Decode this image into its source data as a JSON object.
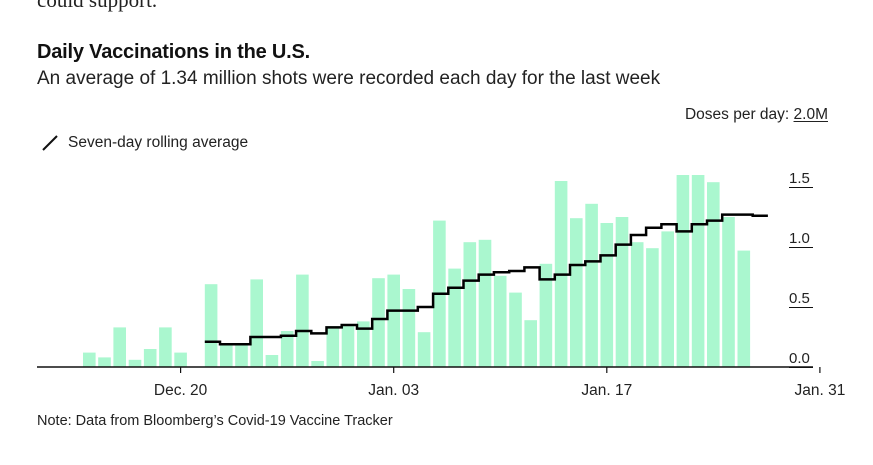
{
  "header": {
    "cutoff_text": "could support.",
    "title": "Daily Vaccinations in the U.S.",
    "subtitle": "An average of 1.34 million shots were recorded each day for the last week",
    "units_prefix": "Doses per day: ",
    "units_value": "2.0M",
    "legend_label": "Seven-day rolling average",
    "note": "Note: Data from Bloomberg’s Covid-19 Vaccine Tracker"
  },
  "colors": {
    "bar": "#aaf7cf",
    "line": "#000000",
    "axis": "#111111"
  },
  "chart_data": {
    "type": "bar",
    "x": [
      "Dec. 14",
      "Dec. 15",
      "Dec. 16",
      "Dec. 17",
      "Dec. 18",
      "Dec. 19",
      "Dec. 20",
      "Dec. 21",
      "Dec. 22",
      "Dec. 23",
      "Dec. 24",
      "Dec. 25",
      "Dec. 26",
      "Dec. 27",
      "Dec. 28",
      "Dec. 29",
      "Dec. 30",
      "Dec. 31",
      "Jan. 01",
      "Jan. 02",
      "Jan. 03",
      "Jan. 04",
      "Jan. 05",
      "Jan. 06",
      "Jan. 07",
      "Jan. 08",
      "Jan. 09",
      "Jan. 10",
      "Jan. 11",
      "Jan. 12",
      "Jan. 13",
      "Jan. 14",
      "Jan. 15",
      "Jan. 16",
      "Jan. 17",
      "Jan. 18",
      "Jan. 19",
      "Jan. 20",
      "Jan. 21",
      "Jan. 22",
      "Jan. 23",
      "Jan. 24",
      "Jan. 25",
      "Jan. 26",
      "Jan. 27",
      "Jan. 28",
      "Jan. 29",
      "Jan. 30",
      "Jan. 31",
      "Feb. 01",
      "Feb. 02"
    ],
    "x_tick_labels": [
      "Dec. 20",
      "Jan. 03",
      "Jan. 17",
      "Jan. 31"
    ],
    "x_tick_indices": [
      6,
      20,
      34,
      48
    ],
    "series": [
      {
        "values": [
          0.12,
          0.08,
          0.33,
          0.06,
          0.15,
          0.33,
          0.12,
          0,
          0.69,
          0.18,
          0.18,
          0.73,
          0.1,
          0.3,
          0.77,
          0.05,
          0.34,
          0.34,
          0.38,
          0.74,
          0.77,
          0.65,
          0.29,
          1.22,
          0.82,
          1.04,
          1.06,
          0.76,
          0.62,
          0.39,
          0.86,
          1.55,
          1.24,
          1.36,
          1.2,
          1.25,
          1.04,
          0.99,
          1.13,
          1.6,
          1.6,
          1.54,
          1.25,
          0.97,
          0,
          0,
          0,
          0,
          0,
          0,
          0
        ]
      },
      {
        "values": [
          null,
          null,
          null,
          null,
          null,
          null,
          null,
          null,
          0.21,
          0.19,
          0.19,
          0.25,
          0.25,
          0.26,
          0.3,
          0.28,
          0.33,
          0.35,
          0.32,
          0.4,
          0.47,
          0.47,
          0.5,
          0.61,
          0.66,
          0.72,
          0.77,
          0.79,
          0.8,
          0.83,
          0.73,
          0.77,
          0.85,
          0.88,
          0.93,
          1.02,
          1.1,
          1.16,
          1.19,
          1.13,
          1.19,
          1.22,
          1.27,
          1.27,
          1.26,
          null,
          null,
          null,
          null,
          null,
          null
        ]
      }
    ],
    "y_tick_labels": [
      "0.0",
      "0.5",
      "1.0",
      "1.5",
      "2.0M"
    ],
    "y_ticks": [
      0,
      0.5,
      1.0,
      1.5,
      2.0
    ],
    "ylim": [
      0,
      2.0
    ],
    "grid": false,
    "legend_placement": "top-left"
  }
}
